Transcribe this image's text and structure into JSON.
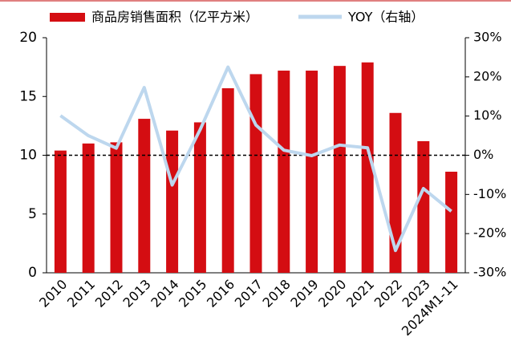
{
  "chart_data": {
    "type": "bar_line",
    "categories": [
      "2010",
      "2011",
      "2012",
      "2013",
      "2014",
      "2015",
      "2016",
      "2017",
      "2018",
      "2019",
      "2020",
      "2021",
      "2022",
      "2023",
      "2024M1-11"
    ],
    "series": [
      {
        "name": "商品房销售面积（亿平方米）",
        "type": "bar",
        "color": "#d40d12",
        "values": [
          10.4,
          11.0,
          11.1,
          13.1,
          12.1,
          12.8,
          15.7,
          16.9,
          17.2,
          17.2,
          17.6,
          17.9,
          13.6,
          11.2,
          8.6
        ]
      },
      {
        "name": "YOY（右轴）",
        "type": "line",
        "axis": "y2",
        "color": "#bdd7ee",
        "values": [
          10.1,
          5.0,
          1.8,
          17.3,
          -7.6,
          6.5,
          22.5,
          7.7,
          1.3,
          -0.1,
          2.6,
          1.9,
          -24.3,
          -8.5,
          -14.3
        ]
      }
    ],
    "ylim": [
      0,
      20
    ],
    "yticks": [
      0,
      5,
      10,
      15,
      20
    ],
    "y2lim": [
      -30,
      30
    ],
    "y2ticks": [
      {
        "value": -30,
        "label": "-30%"
      },
      {
        "value": -20,
        "label": "-20%"
      },
      {
        "value": -10,
        "label": "-10%"
      },
      {
        "value": 0,
        "label": "0%"
      },
      {
        "value": 10,
        "label": "10%"
      },
      {
        "value": 20,
        "label": "20%"
      },
      {
        "value": 30,
        "label": "30%"
      }
    ],
    "hline": {
      "axis": "y2",
      "value": 0,
      "color": "#000000"
    },
    "legend": "top"
  }
}
